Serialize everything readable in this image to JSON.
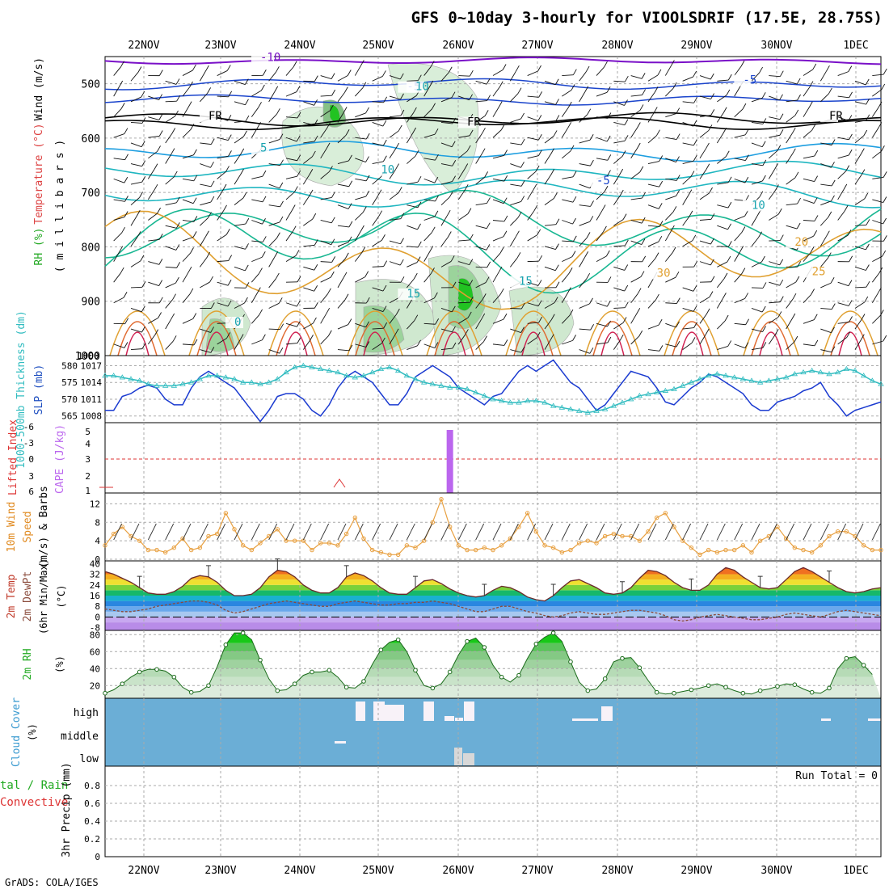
{
  "title": "GFS 0~10day 3-hourly for VIOOLSDRIF (17.5E, 28.75S)",
  "footer": "GrADS: COLA/IGES",
  "run_total": "Run Total = 0",
  "colors": {
    "rh_green": "#22c322",
    "temp_isotherm_cold": "#7a10c8",
    "slp_line": "#1a3ad0",
    "thickness_line": "#31bcc0",
    "lifted_index": "#dd3333",
    "cape_bar": "#bb66ee",
    "wind10m": "#e8a040",
    "rh2m": "#22aa22",
    "cloud_fill": "#6baed6",
    "cloud_clear": "#f8f2f8"
  },
  "chart_data": [
    {
      "id": "upper_air",
      "type": "contour",
      "xlabel": "",
      "ylabel_parts": [
        "RH (%)",
        "Temperature (°C)",
        "Wind (m/s)"
      ],
      "ylabel_unit": "( m i l l i b a r s )",
      "x_tick_labels": [
        "22NOV",
        "23NOV",
        "24NOV",
        "25NOV",
        "26NOV",
        "27NOV",
        "28NOV",
        "29NOV",
        "30NOV",
        "1DEC"
      ],
      "y_ticks": [
        500,
        600,
        700,
        800,
        900,
        1000
      ],
      "ylim": [
        450,
        1000
      ],
      "isotherm_labels": [
        {
          "text": "-10",
          "t": 18,
          "p": 458
        },
        {
          "text": "-5",
          "t": 35,
          "p": 512
        },
        {
          "text": "FR",
          "t": 12,
          "p": 566
        },
        {
          "text": "FR",
          "t": 42,
          "p": 577
        },
        {
          "text": "FR",
          "t": 84,
          "p": 566
        },
        {
          "text": "5",
          "t": 18,
          "p": 625
        },
        {
          "text": "10",
          "t": 32,
          "p": 665
        },
        {
          "text": "-5",
          "t": 57,
          "p": 685
        },
        {
          "text": "-5",
          "t": 74,
          "p": 500
        },
        {
          "text": "10",
          "t": 75,
          "p": 730
        },
        {
          "text": "15",
          "t": 35,
          "p": 893
        },
        {
          "text": "15",
          "t": 48,
          "p": 870
        },
        {
          "text": "20",
          "t": 80,
          "p": 798
        },
        {
          "text": "25",
          "t": 82,
          "p": 852
        },
        {
          "text": "30",
          "t": 64,
          "p": 855
        },
        {
          "text": "10",
          "t": 36,
          "p": 512
        },
        {
          "text": "0",
          "t": 15,
          "p": 945
        }
      ]
    },
    {
      "id": "slp_thickness",
      "type": "line",
      "ylabel_left": "1000-500mb Thickness (dm)",
      "ylabel_right": "SLP (mb)",
      "left_ticks": [
        565,
        570,
        575,
        580
      ],
      "right_ticks": [
        1008,
        1011,
        1014,
        1017
      ],
      "ylim_left": [
        563,
        583
      ],
      "series": [
        {
          "name": "SLP",
          "axis": "right",
          "values": [
            1009,
            1009,
            1011.5,
            1012,
            1013,
            1013.5,
            1013,
            1011,
            1010,
            1010,
            1013,
            1015,
            1016,
            1015,
            1014,
            1013,
            1011,
            1009,
            1007,
            1009,
            1011.5,
            1012,
            1012,
            1011,
            1009,
            1008,
            1010,
            1013,
            1015,
            1016,
            1015,
            1014,
            1012,
            1010,
            1010,
            1012,
            1015,
            1016,
            1017,
            1016,
            1015,
            1013,
            1012,
            1011,
            1010,
            1011.5,
            1012,
            1014,
            1016,
            1017,
            1016,
            1017,
            1018,
            1016,
            1014,
            1013,
            1011,
            1009,
            1010,
            1012,
            1014,
            1016,
            1015.5,
            1015,
            1013,
            1010.5,
            1010,
            1011.5,
            1013,
            1014,
            1015.5,
            1015,
            1014,
            1013,
            1012,
            1010,
            1009,
            1009,
            1010.5,
            1011,
            1011.5,
            1012.5,
            1013,
            1014,
            1011.5,
            1010,
            1008,
            1009,
            1009.5,
            1010,
            1010.5
          ]
        },
        {
          "name": "1000-500mb Thickness",
          "axis": "left",
          "values": [
            577,
            577,
            576.5,
            576,
            575.5,
            574.5,
            574,
            574,
            574,
            574.5,
            575,
            576,
            577,
            577,
            576.5,
            576,
            575,
            575,
            574.5,
            575,
            576,
            578,
            579.5,
            580,
            579.5,
            579,
            578.5,
            578,
            577,
            576.5,
            577,
            578,
            579,
            579.5,
            578.5,
            577,
            576,
            575,
            574.5,
            574,
            573.5,
            573.5,
            573,
            572,
            571,
            570,
            569.5,
            569,
            569,
            569.5,
            569.5,
            569,
            568,
            567.5,
            567,
            566.5,
            566,
            566.5,
            567,
            568,
            569,
            570,
            571,
            571.5,
            572,
            572.5,
            573,
            574,
            575,
            576,
            577,
            577.5,
            577,
            576.5,
            576,
            575.5,
            575,
            575.5,
            576,
            576.5,
            577.5,
            578,
            578.5,
            578,
            577.5,
            578,
            579,
            578.5,
            577,
            575.5,
            574.5
          ]
        }
      ]
    },
    {
      "id": "cape_li",
      "type": "bar",
      "ylabel_left": "Lifted Index",
      "ylabel_right": "CAPE (J/kg)",
      "left_ticks": [
        "-6",
        "-3",
        "0",
        "3",
        "6"
      ],
      "right_ticks": [
        "1",
        "2",
        "3",
        "4",
        "5"
      ],
      "cape_bar": {
        "time_index": 40,
        "value": 5
      },
      "lifted_index_hash": [
        1,
        2
      ]
    },
    {
      "id": "wind10m",
      "type": "line",
      "ylabel": "10m Wind Speed (m/s) & Barbs",
      "y_ticks": [
        0,
        4,
        8,
        12
      ],
      "ylim": [
        0,
        14
      ],
      "series": [
        {
          "name": "10m Wind Speed",
          "values": [
            3,
            5.5,
            7,
            5,
            4,
            2,
            2,
            1.5,
            2.5,
            4.5,
            2,
            2.5,
            5,
            5.5,
            10,
            6.5,
            3,
            2,
            3.5,
            5,
            6.5,
            4,
            4,
            4,
            2,
            3.5,
            3.5,
            3,
            5.5,
            9,
            4.5,
            2,
            1.5,
            1,
            1,
            3,
            2.5,
            4,
            8,
            13,
            7,
            3,
            2,
            2,
            2.5,
            2,
            3,
            4.5,
            7,
            10,
            6,
            3,
            2.5,
            1.5,
            2,
            3.5,
            4,
            3.5,
            5,
            5.5,
            5,
            5,
            4,
            6,
            9,
            10,
            7,
            4,
            2.5,
            1,
            2,
            1.5,
            2,
            2,
            3,
            1.5,
            4,
            5,
            7,
            4.5,
            2.5,
            2,
            1.5,
            3,
            5,
            6,
            6,
            5,
            3,
            2,
            2
          ]
        }
      ]
    },
    {
      "id": "temp2m",
      "type": "area",
      "ylabel": "2m Temp 2m DewPt (6hr Min/Max) (°C)",
      "y_ticks": [
        -8,
        0,
        8,
        16,
        24,
        32,
        40
      ],
      "ylim": [
        -10,
        42
      ],
      "series": [
        {
          "name": "2m Temp",
          "values": [
            34,
            32,
            29,
            26,
            22,
            18,
            17,
            17,
            19,
            23,
            29,
            31,
            30,
            26,
            20,
            16,
            16,
            17,
            22,
            30,
            35,
            34,
            30,
            24,
            20,
            18,
            18,
            22,
            30,
            33,
            31,
            27,
            22,
            18,
            17,
            17,
            22,
            27,
            28,
            25,
            21,
            18,
            16,
            15,
            16,
            20,
            23,
            22,
            19,
            15,
            13,
            12,
            16,
            22,
            27,
            28,
            25,
            22,
            18,
            17,
            18,
            22,
            29,
            35,
            34,
            31,
            26,
            22,
            20,
            20,
            24,
            32,
            37,
            35,
            30,
            26,
            22,
            21,
            22,
            28,
            34,
            37,
            34,
            30,
            26,
            22,
            19,
            18,
            19,
            21,
            22
          ]
        },
        {
          "name": "2m DewPt",
          "values": [
            6,
            5,
            4,
            4,
            5,
            6,
            8,
            9,
            10,
            11,
            12,
            12,
            11,
            9,
            5,
            3,
            4,
            6,
            8,
            10,
            11,
            12,
            11,
            10,
            9,
            8,
            8,
            10,
            11,
            12,
            11,
            10,
            9,
            9,
            10,
            10,
            11,
            11,
            12,
            11,
            10,
            8,
            6,
            4,
            4,
            6,
            8,
            8,
            6,
            4,
            3,
            1,
            0,
            1,
            3,
            4,
            3,
            2,
            2,
            3,
            4,
            5,
            5,
            4,
            3,
            1,
            -2,
            -3,
            -2,
            0,
            1,
            2,
            1,
            0,
            -1,
            -2,
            -2,
            -1,
            0,
            2,
            3,
            2,
            1,
            0,
            2,
            4,
            5,
            4,
            3,
            2,
            1
          ]
        }
      ]
    },
    {
      "id": "rh2m",
      "type": "area",
      "ylabel": "2m RH (%)",
      "y_ticks": [
        20,
        40,
        60,
        80
      ],
      "ylim": [
        5,
        85
      ],
      "series": [
        {
          "name": "2m RH",
          "values": [
            11,
            15,
            22,
            30,
            36,
            39,
            39,
            37,
            30,
            18,
            12,
            13,
            20,
            42,
            68,
            82,
            82,
            74,
            50,
            28,
            14,
            15,
            22,
            32,
            36,
            36,
            38,
            30,
            18,
            17,
            25,
            45,
            62,
            71,
            74,
            60,
            38,
            20,
            17,
            22,
            36,
            56,
            72,
            76,
            65,
            44,
            30,
            24,
            32,
            52,
            69,
            77,
            82,
            72,
            48,
            24,
            14,
            16,
            28,
            48,
            52,
            53,
            41,
            26,
            12,
            10,
            11,
            13,
            15,
            17,
            20,
            22,
            18,
            14,
            11,
            10,
            14,
            16,
            19,
            22,
            21,
            16,
            12,
            11,
            17,
            40,
            52,
            54,
            44,
            33
          ]
        }
      ]
    },
    {
      "id": "cloud",
      "type": "heatmap",
      "ylabel": "Cloud Cover (%)",
      "rows": [
        "high",
        "middle",
        "low"
      ]
    },
    {
      "id": "precip",
      "type": "bar",
      "ylabel_left": "Total / Rain Convective",
      "ylabel": "3hr Precip (mm)",
      "y_ticks": [
        "0",
        "0.2",
        "0.4",
        "0.6",
        "0.8"
      ],
      "values": [],
      "x_tick_labels": [
        "22NOV",
        "23NOV",
        "24NOV",
        "25NOV",
        "26NOV",
        "27NOV",
        "28NOV",
        "29NOV",
        "30NOV",
        "1DEC"
      ]
    }
  ]
}
